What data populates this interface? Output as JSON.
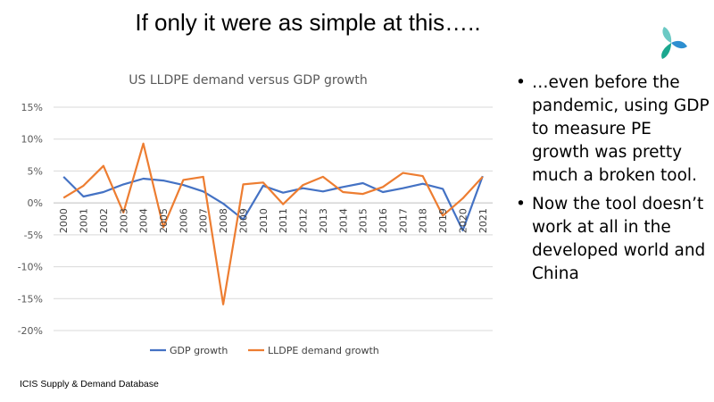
{
  "slide": {
    "title": "If only it were as simple at this…..",
    "source": "ICIS Supply  & Demand Database",
    "logo_icon": "propeller-logo-icon",
    "bullets": [
      "…even before the pandemic, using GDP to measure PE growth was pretty much a broken tool.",
      "Now the tool doesn’t work at all in the developed world and China"
    ]
  },
  "chart_data": {
    "type": "line",
    "title": "US LLDPE demand versus GDP growth",
    "xlabel": "",
    "ylabel": "",
    "categories": [
      "2000",
      "2001",
      "2002",
      "2003",
      "2004",
      "2005",
      "2006",
      "2007",
      "2008",
      "2009",
      "2010",
      "2011",
      "2012",
      "2013",
      "2014",
      "2015",
      "2016",
      "2017",
      "2018",
      "2019",
      "2020",
      "2021"
    ],
    "ylim": [
      -20,
      15
    ],
    "yticks": [
      "15%",
      "10%",
      "5%",
      "0%",
      "-5%",
      "-10%",
      "-15%",
      "-20%"
    ],
    "grid": true,
    "legend": "bottom",
    "series": [
      {
        "name": "GDP growth",
        "color": "#4472C4",
        "values": [
          4.1,
          1.0,
          1.7,
          2.9,
          3.8,
          3.5,
          2.8,
          1.8,
          -0.1,
          -2.6,
          2.7,
          1.6,
          2.3,
          1.8,
          2.5,
          3.1,
          1.7,
          2.3,
          3.0,
          2.2,
          -4.3,
          4.2
        ]
      },
      {
        "name": "LLDPE demand growth",
        "color": "#ED7D31",
        "values": [
          0.8,
          2.7,
          5.8,
          -1.5,
          9.3,
          -3.8,
          3.6,
          4.1,
          -15.9,
          2.9,
          3.2,
          -0.2,
          2.8,
          4.1,
          1.7,
          1.4,
          2.5,
          4.7,
          4.2,
          -2.0,
          0.7,
          4.1
        ]
      }
    ]
  }
}
